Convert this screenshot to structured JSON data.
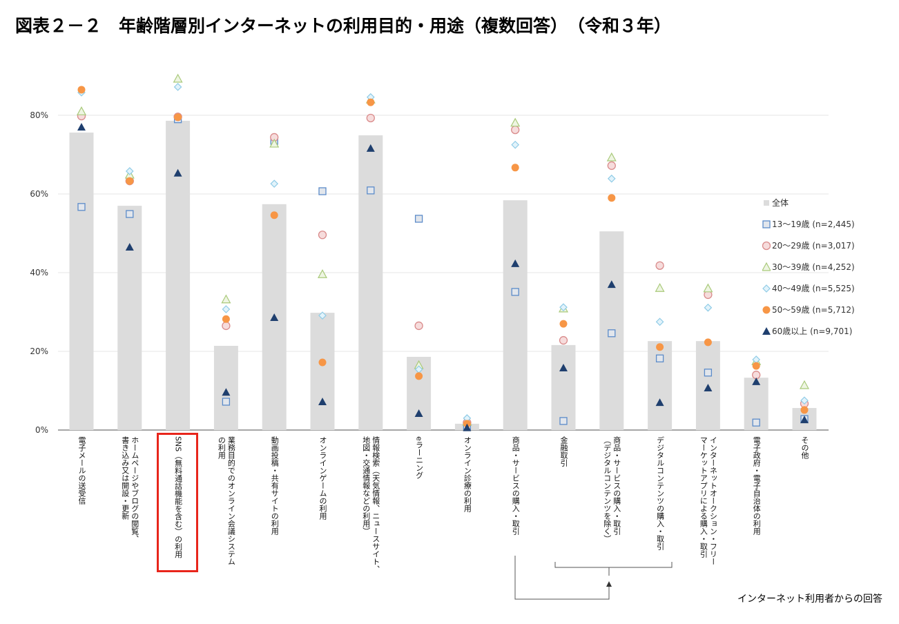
{
  "title": "図表２－２　年齢階層別インターネットの利用目的・用途（複数回答）　（令和３年）",
  "note": "インターネット利用者からの回答",
  "chart_data": {
    "type": "bar",
    "ylim": [
      0,
      90
    ],
    "yticks": [
      "0%",
      "20%",
      "40%",
      "60%",
      "80%"
    ],
    "ytick_values": [
      0,
      20,
      40,
      60,
      80
    ],
    "grid": true,
    "legend_position": "right",
    "highlighted_category": "SNS（無料通話機能を含む）の利用",
    "categories": [
      "電子メールの送受信",
      "ホームページやブログの閲覧、\n書き込み又は開設・更新",
      "SNS（無料通話機能を含む）の利用",
      "業務目的でのオンライン会議システム\nの利用",
      "動画投稿・共有サイトの利用",
      "オンラインゲームの利用",
      "情報検索（天気情報、ニュースサイト、\n地図・交通情報などの利用）",
      "eラーニング",
      "オンライン診療の利用",
      "商品・サービスの購入・取引",
      "金融取引",
      "商品・サービスの購入・取引\n（デジタルコンテンツを除く）",
      "デジタルコンテンツの購入・取引",
      "インターネットオークション・フリー\nマーケットアプリによる購入・取引",
      "電子政府・電子自治体の利用",
      "その他"
    ],
    "series": [
      {
        "name": "全体",
        "kind": "bar",
        "color": "#dcdcdc",
        "values": [
          75.6,
          57.0,
          78.6,
          21.4,
          57.4,
          29.8,
          74.9,
          18.6,
          1.6,
          58.4,
          21.6,
          50.5,
          22.6,
          22.6,
          13.3,
          5.6
        ]
      },
      {
        "name": "13～19歳 (n=2,445)",
        "kind": "square",
        "color": "#5b8bc9",
        "values": [
          56.7,
          54.9,
          79.0,
          7.2,
          73.5,
          60.7,
          60.9,
          53.7,
          1.0,
          35.1,
          2.3,
          24.6,
          18.2,
          14.6,
          1.9,
          2.8
        ]
      },
      {
        "name": "20～29歳 (n=3,017)",
        "kind": "circle",
        "color": "#d98a8a",
        "values": [
          79.8,
          63.3,
          79.6,
          26.5,
          74.4,
          49.6,
          79.3,
          26.5,
          1.9,
          76.3,
          22.8,
          67.2,
          41.8,
          34.4,
          14.0,
          6.7
        ]
      },
      {
        "name": "30～39歳 (n=4,252)",
        "kind": "triangle",
        "color": "#a9c97a",
        "values": [
          81.0,
          64.9,
          89.3,
          33.2,
          72.8,
          39.6,
          84.0,
          16.5,
          2.1,
          78.1,
          30.9,
          69.3,
          36.1,
          36.0,
          17.5,
          11.4
        ]
      },
      {
        "name": "40～49歳 (n=5,525)",
        "kind": "diamond",
        "color": "#8fcbe6",
        "values": [
          85.8,
          65.8,
          87.2,
          30.7,
          62.6,
          29.1,
          84.6,
          15.4,
          3.0,
          72.5,
          31.2,
          63.9,
          27.5,
          31.1,
          17.9,
          7.5
        ]
      },
      {
        "name": "50～59歳 (n=5,712)",
        "kind": "dot",
        "color": "#f79646",
        "values": [
          86.5,
          63.3,
          79.5,
          28.2,
          54.6,
          17.2,
          83.3,
          13.7,
          1.6,
          66.7,
          27.0,
          59.0,
          21.1,
          22.3,
          16.3,
          5.1
        ]
      },
      {
        "name": "60歳以上 (n=9,701)",
        "kind": "filled-triangle",
        "color": "#1f3f6e",
        "values": [
          77.0,
          46.5,
          65.3,
          9.6,
          28.6,
          7.2,
          71.6,
          4.2,
          0.6,
          42.3,
          15.8,
          37.0,
          7.0,
          10.7,
          12.3,
          2.6
        ]
      }
    ]
  }
}
